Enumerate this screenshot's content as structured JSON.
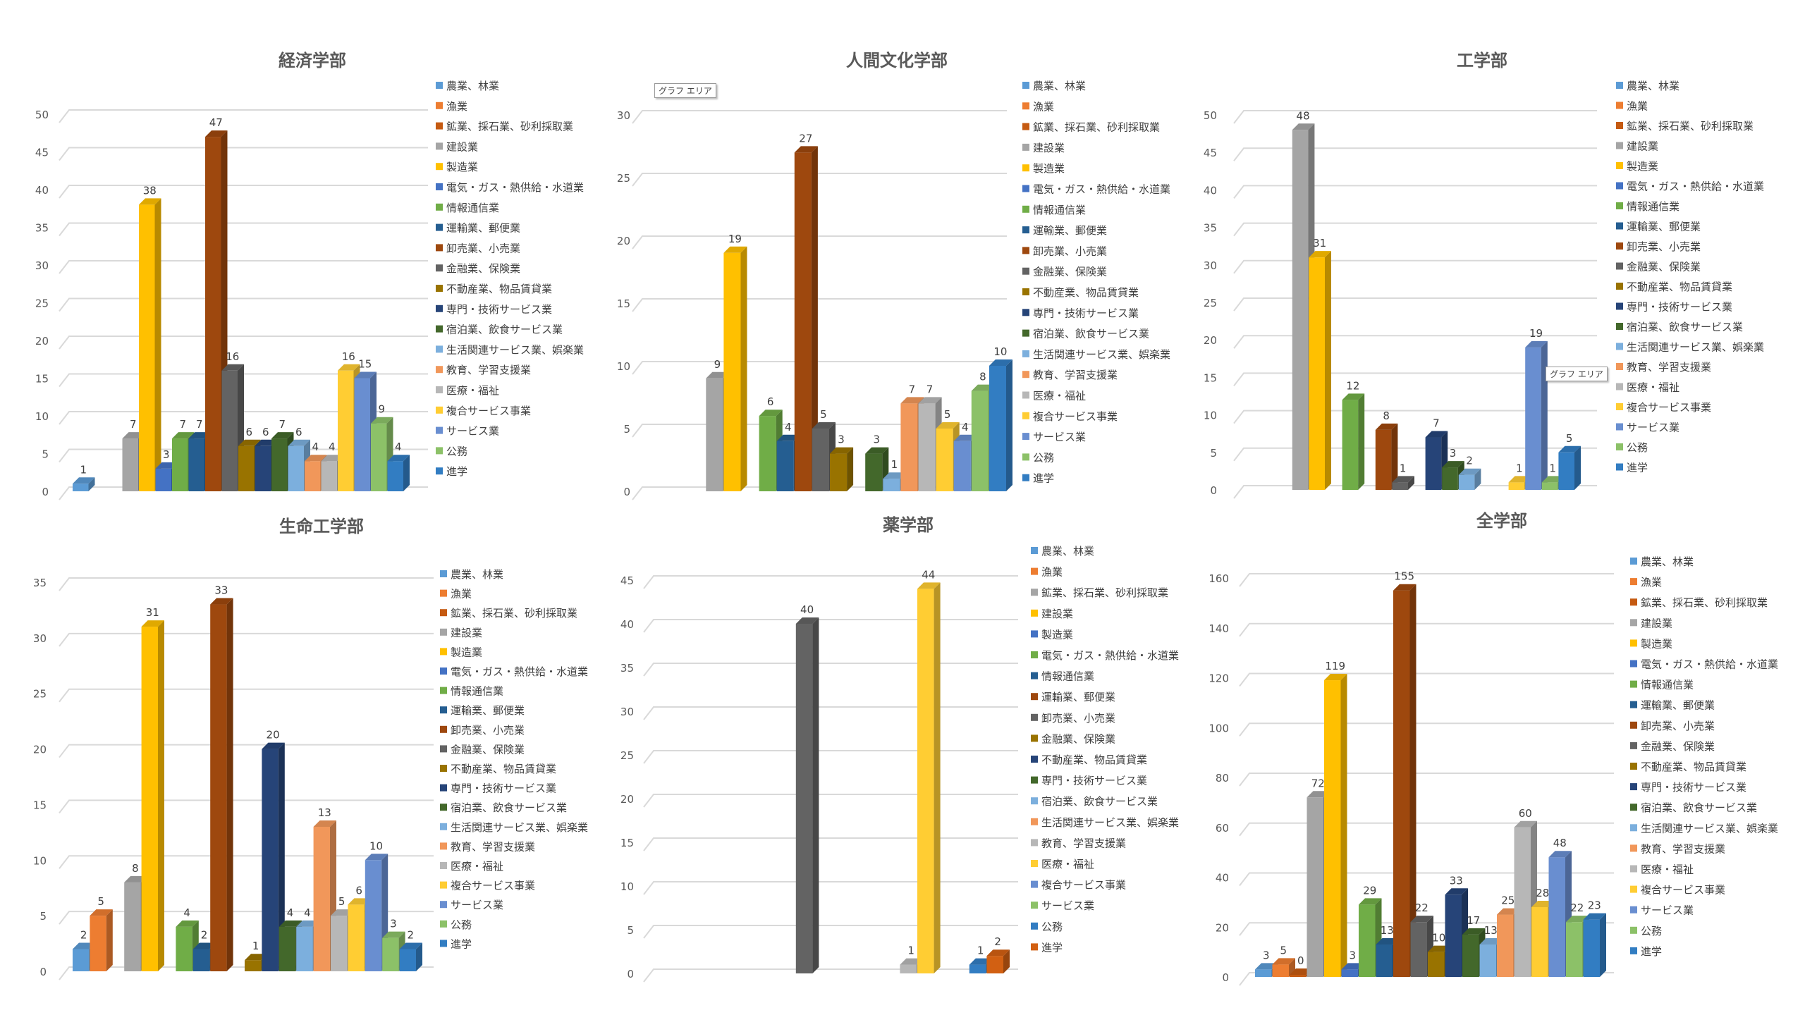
{
  "tooltip_label": "グラフ エリア",
  "chart_data": [
    {
      "type": "bar",
      "title": "経済学部",
      "categories": [
        ""
      ],
      "xlabel": "",
      "ylabel": "",
      "ylim": [
        0,
        50
      ],
      "ytick_step": 5,
      "grid": true,
      "legend": "right",
      "label_zero": false,
      "series": [
        {
          "name": "農業、林業",
          "value": 1,
          "color": "#5B9BD5"
        },
        {
          "name": "漁業",
          "value": 0,
          "color": "#ED7D31"
        },
        {
          "name": "鉱業、採石業、砂利採取業",
          "value": 0,
          "color": "#C55A11"
        },
        {
          "name": "建設業",
          "value": 7,
          "color": "#A5A5A5"
        },
        {
          "name": "製造業",
          "value": 38,
          "color": "#FFC000"
        },
        {
          "name": "電気・ガス・熱供給・水道業",
          "value": 3,
          "color": "#4472C4"
        },
        {
          "name": "情報通信業",
          "value": 7,
          "color": "#70AD47"
        },
        {
          "name": "運輸業、郵便業",
          "value": 7,
          "color": "#255E91"
        },
        {
          "name": "卸売業、小売業",
          "value": 47,
          "color": "#9E480E"
        },
        {
          "name": "金融業、保険業",
          "value": 16,
          "color": "#636363"
        },
        {
          "name": "不動産業、物品賃貸業",
          "value": 6,
          "color": "#997300"
        },
        {
          "name": "専門・技術サービス業",
          "value": 6,
          "color": "#264478"
        },
        {
          "name": "宿泊業、飲食サービス業",
          "value": 7,
          "color": "#43682B"
        },
        {
          "name": "生活関連サービス業、娯楽業",
          "value": 6,
          "color": "#7CAFDD"
        },
        {
          "name": "教育、学習支援業",
          "value": 4,
          "color": "#F1975A"
        },
        {
          "name": "医療・福祉",
          "value": 4,
          "color": "#B7B7B7"
        },
        {
          "name": "複合サービス事業",
          "value": 16,
          "color": "#FFCD33"
        },
        {
          "name": "サービス業",
          "value": 15,
          "color": "#698ED0"
        },
        {
          "name": "公務",
          "value": 9,
          "color": "#8CC168"
        },
        {
          "name": "進学",
          "value": 4,
          "color": "#327DC2"
        }
      ]
    },
    {
      "type": "bar",
      "title": "人間文化学部",
      "categories": [
        ""
      ],
      "xlabel": "",
      "ylabel": "",
      "ylim": [
        0,
        30
      ],
      "ytick_step": 5,
      "grid": true,
      "legend": "right",
      "label_zero": false,
      "series": [
        {
          "name": "農業、林業",
          "value": 0,
          "color": "#5B9BD5"
        },
        {
          "name": "漁業",
          "value": 0,
          "color": "#ED7D31"
        },
        {
          "name": "鉱業、採石業、砂利採取業",
          "value": 0,
          "color": "#C55A11"
        },
        {
          "name": "建設業",
          "value": 9,
          "color": "#A5A5A5"
        },
        {
          "name": "製造業",
          "value": 19,
          "color": "#FFC000"
        },
        {
          "name": "電気・ガス・熱供給・水道業",
          "value": 0,
          "color": "#4472C4"
        },
        {
          "name": "情報通信業",
          "value": 6,
          "color": "#70AD47"
        },
        {
          "name": "運輸業、郵便業",
          "value": 4,
          "color": "#255E91"
        },
        {
          "name": "卸売業、小売業",
          "value": 27,
          "color": "#9E480E"
        },
        {
          "name": "金融業、保険業",
          "value": 5,
          "color": "#636363"
        },
        {
          "name": "不動産業、物品賃貸業",
          "value": 3,
          "color": "#997300"
        },
        {
          "name": "専門・技術サービス業",
          "value": 0,
          "color": "#264478"
        },
        {
          "name": "宿泊業、飲食サービス業",
          "value": 3,
          "color": "#43682B"
        },
        {
          "name": "生活関連サービス業、娯楽業",
          "value": 1,
          "color": "#7CAFDD"
        },
        {
          "name": "教育、学習支援業",
          "value": 7,
          "color": "#F1975A"
        },
        {
          "name": "医療・福祉",
          "value": 7,
          "color": "#B7B7B7"
        },
        {
          "name": "複合サービス事業",
          "value": 5,
          "color": "#FFCD33"
        },
        {
          "name": "サービス業",
          "value": 4,
          "color": "#698ED0"
        },
        {
          "name": "公務",
          "value": 8,
          "color": "#8CC168"
        },
        {
          "name": "進学",
          "value": 10,
          "color": "#327DC2"
        }
      ]
    },
    {
      "type": "bar",
      "title": "工学部",
      "categories": [
        ""
      ],
      "xlabel": "",
      "ylabel": "",
      "ylim": [
        0,
        50
      ],
      "ytick_step": 5,
      "grid": true,
      "legend": "right",
      "label_zero": false,
      "series": [
        {
          "name": "農業、林業",
          "value": 0,
          "color": "#5B9BD5"
        },
        {
          "name": "漁業",
          "value": 0,
          "color": "#ED7D31"
        },
        {
          "name": "鉱業、採石業、砂利採取業",
          "value": 0,
          "color": "#C55A11"
        },
        {
          "name": "建設業",
          "value": 48,
          "color": "#A5A5A5"
        },
        {
          "name": "製造業",
          "value": 31,
          "color": "#FFC000"
        },
        {
          "name": "電気・ガス・熱供給・水道業",
          "value": 0,
          "color": "#4472C4"
        },
        {
          "name": "情報通信業",
          "value": 12,
          "color": "#70AD47"
        },
        {
          "name": "運輸業、郵便業",
          "value": 0,
          "color": "#255E91"
        },
        {
          "name": "卸売業、小売業",
          "value": 8,
          "color": "#9E480E"
        },
        {
          "name": "金融業、保険業",
          "value": 1,
          "color": "#636363"
        },
        {
          "name": "不動産業、物品賃貸業",
          "value": 0,
          "color": "#997300"
        },
        {
          "name": "専門・技術サービス業",
          "value": 7,
          "color": "#264478"
        },
        {
          "name": "宿泊業、飲食サービス業",
          "value": 3,
          "color": "#43682B"
        },
        {
          "name": "生活関連サービス業、娯楽業",
          "value": 2,
          "color": "#7CAFDD"
        },
        {
          "name": "教育、学習支援業",
          "value": 0,
          "color": "#F1975A"
        },
        {
          "name": "医療・福祉",
          "value": 0,
          "color": "#B7B7B7"
        },
        {
          "name": "複合サービス事業",
          "value": 1,
          "color": "#FFCD33"
        },
        {
          "name": "サービス業",
          "value": 19,
          "color": "#698ED0"
        },
        {
          "name": "公務",
          "value": 1,
          "color": "#8CC168"
        },
        {
          "name": "進学",
          "value": 5,
          "color": "#327DC2"
        }
      ]
    },
    {
      "type": "bar",
      "title": "生命工学部",
      "categories": [
        ""
      ],
      "xlabel": "",
      "ylabel": "",
      "ylim": [
        0,
        35
      ],
      "ytick_step": 5,
      "grid": true,
      "legend": "right",
      "label_zero": false,
      "series": [
        {
          "name": "農業、林業",
          "value": 2,
          "color": "#5B9BD5"
        },
        {
          "name": "漁業",
          "value": 5,
          "color": "#ED7D31"
        },
        {
          "name": "鉱業、採石業、砂利採取業",
          "value": 0,
          "color": "#C55A11"
        },
        {
          "name": "建設業",
          "value": 8,
          "color": "#A5A5A5"
        },
        {
          "name": "製造業",
          "value": 31,
          "color": "#FFC000"
        },
        {
          "name": "電気・ガス・熱供給・水道業",
          "value": 0,
          "color": "#4472C4"
        },
        {
          "name": "情報通信業",
          "value": 4,
          "color": "#70AD47"
        },
        {
          "name": "運輸業、郵便業",
          "value": 2,
          "color": "#255E91"
        },
        {
          "name": "卸売業、小売業",
          "value": 33,
          "color": "#9E480E"
        },
        {
          "name": "金融業、保険業",
          "value": 0,
          "color": "#636363"
        },
        {
          "name": "不動産業、物品賃貸業",
          "value": 1,
          "color": "#997300"
        },
        {
          "name": "専門・技術サービス業",
          "value": 20,
          "color": "#264478"
        },
        {
          "name": "宿泊業、飲食サービス業",
          "value": 4,
          "color": "#43682B"
        },
        {
          "name": "生活関連サービス業、娯楽業",
          "value": 4,
          "color": "#7CAFDD"
        },
        {
          "name": "教育、学習支援業",
          "value": 13,
          "color": "#F1975A"
        },
        {
          "name": "医療・福祉",
          "value": 5,
          "color": "#B7B7B7"
        },
        {
          "name": "複合サービス事業",
          "value": 6,
          "color": "#FFCD33"
        },
        {
          "name": "サービス業",
          "value": 10,
          "color": "#698ED0"
        },
        {
          "name": "公務",
          "value": 3,
          "color": "#8CC168"
        },
        {
          "name": "進学",
          "value": 2,
          "color": "#327DC2"
        }
      ]
    },
    {
      "type": "bar",
      "title": "薬学部",
      "categories": [
        ""
      ],
      "xlabel": "",
      "ylabel": "",
      "ylim": [
        0,
        45
      ],
      "ytick_step": 5,
      "grid": true,
      "legend": "right",
      "label_zero": false,
      "series": [
        {
          "name": "農業、林業",
          "value": 0,
          "color": "#5B9BD5"
        },
        {
          "name": "漁業",
          "value": 0,
          "color": "#ED7D31"
        },
        {
          "name": "鉱業、採石業、砂利採取業",
          "value": 0,
          "color": "#A5A5A5"
        },
        {
          "name": "建設業",
          "value": 0,
          "color": "#FFC000"
        },
        {
          "name": "製造業",
          "value": 0,
          "color": "#4472C4"
        },
        {
          "name": "電気・ガス・熱供給・水道業",
          "value": 0,
          "color": "#70AD47"
        },
        {
          "name": "情報通信業",
          "value": 0,
          "color": "#255E91"
        },
        {
          "name": "運輸業、郵便業",
          "value": 0,
          "color": "#9E480E"
        },
        {
          "name": "卸売業、小売業",
          "value": 40,
          "color": "#636363"
        },
        {
          "name": "金融業、保険業",
          "value": 0,
          "color": "#997300"
        },
        {
          "name": "不動産業、物品賃貸業",
          "value": 0,
          "color": "#264478"
        },
        {
          "name": "専門・技術サービス業",
          "value": 0,
          "color": "#43682B"
        },
        {
          "name": "宿泊業、飲食サービス業",
          "value": 0,
          "color": "#7CAFDD"
        },
        {
          "name": "生活関連サービス業、娯楽業",
          "value": 0,
          "color": "#F1975A"
        },
        {
          "name": "教育、学習支援業",
          "value": 1,
          "color": "#B7B7B7"
        },
        {
          "name": "医療・福祉",
          "value": 44,
          "color": "#FFCD33"
        },
        {
          "name": "複合サービス事業",
          "value": 0,
          "color": "#698ED0"
        },
        {
          "name": "サービス業",
          "value": 0,
          "color": "#8CC168"
        },
        {
          "name": "公務",
          "value": 1,
          "color": "#327DC2"
        },
        {
          "name": "進学",
          "value": 2,
          "color": "#D26012"
        }
      ]
    },
    {
      "type": "bar",
      "title": "全学部",
      "categories": [
        ""
      ],
      "xlabel": "",
      "ylabel": "",
      "ylim": [
        0,
        160
      ],
      "ytick_step": 20,
      "grid": true,
      "legend": "right",
      "label_zero": true,
      "series": [
        {
          "name": "農業、林業",
          "value": 3,
          "color": "#5B9BD5"
        },
        {
          "name": "漁業",
          "value": 5,
          "color": "#ED7D31"
        },
        {
          "name": "鉱業、採石業、砂利採取業",
          "value": 0,
          "color": "#C55A11"
        },
        {
          "name": "建設業",
          "value": 72,
          "color": "#A5A5A5"
        },
        {
          "name": "製造業",
          "value": 119,
          "color": "#FFC000"
        },
        {
          "name": "電気・ガス・熱供給・水道業",
          "value": 3,
          "color": "#4472C4"
        },
        {
          "name": "情報通信業",
          "value": 29,
          "color": "#70AD47"
        },
        {
          "name": "運輸業、郵便業",
          "value": 13,
          "color": "#255E91"
        },
        {
          "name": "卸売業、小売業",
          "value": 155,
          "color": "#9E480E"
        },
        {
          "name": "金融業、保険業",
          "value": 22,
          "color": "#636363"
        },
        {
          "name": "不動産業、物品賃貸業",
          "value": 10,
          "color": "#997300"
        },
        {
          "name": "専門・技術サービス業",
          "value": 33,
          "color": "#264478"
        },
        {
          "name": "宿泊業、飲食サービス業",
          "value": 17,
          "color": "#43682B"
        },
        {
          "name": "生活関連サービス業、娯楽業",
          "value": 13,
          "color": "#7CAFDD"
        },
        {
          "name": "教育、学習支援業",
          "value": 25,
          "color": "#F1975A"
        },
        {
          "name": "医療・福祉",
          "value": 60,
          "color": "#B7B7B7"
        },
        {
          "name": "複合サービス事業",
          "value": 28,
          "color": "#FFCD33"
        },
        {
          "name": "サービス業",
          "value": 48,
          "color": "#698ED0"
        },
        {
          "name": "公務",
          "value": 22,
          "color": "#8CC168"
        },
        {
          "name": "進学",
          "value": 23,
          "color": "#327DC2"
        }
      ]
    }
  ]
}
